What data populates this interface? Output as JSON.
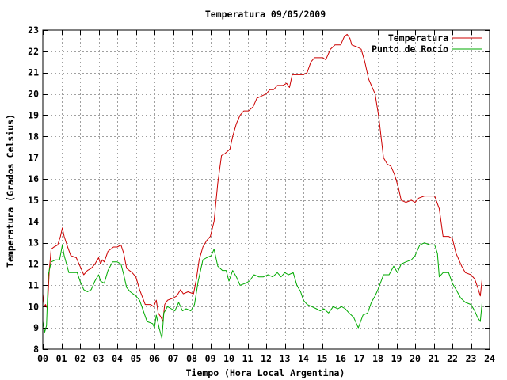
{
  "chart_data": {
    "type": "line",
    "title": "Temperatura 09/05/2009",
    "xlabel": "Tiempo (Hora Local Argentina)",
    "ylabel": "Temperatura (Grados Celsius)",
    "xlim": [
      0,
      24
    ],
    "ylim": [
      8,
      23
    ],
    "x_ticks": [
      {
        "value": 0,
        "label": "00"
      },
      {
        "value": 1,
        "label": "01"
      },
      {
        "value": 2,
        "label": "02"
      },
      {
        "value": 3,
        "label": "03"
      },
      {
        "value": 4,
        "label": "04"
      },
      {
        "value": 5,
        "label": "05"
      },
      {
        "value": 6,
        "label": "06"
      },
      {
        "value": 7,
        "label": "07"
      },
      {
        "value": 8,
        "label": "08"
      },
      {
        "value": 9,
        "label": "09"
      },
      {
        "value": 10,
        "label": "10"
      },
      {
        "value": 11,
        "label": "11"
      },
      {
        "value": 12,
        "label": "12"
      },
      {
        "value": 13,
        "label": "13"
      },
      {
        "value": 14,
        "label": "14"
      },
      {
        "value": 15,
        "label": "15"
      },
      {
        "value": 16,
        "label": "16"
      },
      {
        "value": 17,
        "label": "17"
      },
      {
        "value": 18,
        "label": "18"
      },
      {
        "value": 19,
        "label": "19"
      },
      {
        "value": 20,
        "label": "20"
      },
      {
        "value": 21,
        "label": "21"
      },
      {
        "value": 22,
        "label": "22"
      },
      {
        "value": 23,
        "label": "23"
      },
      {
        "value": 24,
        "label": "24"
      }
    ],
    "y_ticks": [
      {
        "value": 8,
        "label": "8"
      },
      {
        "value": 9,
        "label": "9"
      },
      {
        "value": 10,
        "label": "10"
      },
      {
        "value": 11,
        "label": "11"
      },
      {
        "value": 12,
        "label": "12"
      },
      {
        "value": 13,
        "label": "13"
      },
      {
        "value": 14,
        "label": "14"
      },
      {
        "value": 15,
        "label": "15"
      },
      {
        "value": 16,
        "label": "16"
      },
      {
        "value": 17,
        "label": "17"
      },
      {
        "value": 18,
        "label": "18"
      },
      {
        "value": 19,
        "label": "19"
      },
      {
        "value": 20,
        "label": "20"
      },
      {
        "value": 21,
        "label": "21"
      },
      {
        "value": 22,
        "label": "22"
      },
      {
        "value": 23,
        "label": "23"
      }
    ],
    "grid": true,
    "legend_position": "top-right",
    "series": [
      {
        "name": "Temperatura",
        "color": "#cc0000",
        "points": [
          [
            0.0,
            10.6
          ],
          [
            0.08,
            10.0
          ],
          [
            0.15,
            10.1
          ],
          [
            0.25,
            9.9
          ],
          [
            0.35,
            11.7
          ],
          [
            0.45,
            12.7
          ],
          [
            0.6,
            12.8
          ],
          [
            0.8,
            12.9
          ],
          [
            0.95,
            13.3
          ],
          [
            1.05,
            13.7
          ],
          [
            1.15,
            13.3
          ],
          [
            1.3,
            12.9
          ],
          [
            1.5,
            12.4
          ],
          [
            1.8,
            12.3
          ],
          [
            2.0,
            11.9
          ],
          [
            2.2,
            11.5
          ],
          [
            2.4,
            11.7
          ],
          [
            2.6,
            11.8
          ],
          [
            2.8,
            12.0
          ],
          [
            3.0,
            12.3
          ],
          [
            3.1,
            12.0
          ],
          [
            3.2,
            12.2
          ],
          [
            3.3,
            12.1
          ],
          [
            3.5,
            12.6
          ],
          [
            3.8,
            12.8
          ],
          [
            4.0,
            12.8
          ],
          [
            4.2,
            12.9
          ],
          [
            4.35,
            12.5
          ],
          [
            4.5,
            11.8
          ],
          [
            4.8,
            11.6
          ],
          [
            5.0,
            11.4
          ],
          [
            5.2,
            10.8
          ],
          [
            5.5,
            10.1
          ],
          [
            5.8,
            10.1
          ],
          [
            5.95,
            10.0
          ],
          [
            6.1,
            10.3
          ],
          [
            6.2,
            9.7
          ],
          [
            6.35,
            9.5
          ],
          [
            6.45,
            9.3
          ],
          [
            6.55,
            10.1
          ],
          [
            6.7,
            10.3
          ],
          [
            7.0,
            10.4
          ],
          [
            7.2,
            10.5
          ],
          [
            7.4,
            10.8
          ],
          [
            7.55,
            10.6
          ],
          [
            7.8,
            10.7
          ],
          [
            8.1,
            10.6
          ],
          [
            8.25,
            11.3
          ],
          [
            8.4,
            12.2
          ],
          [
            8.6,
            12.8
          ],
          [
            8.8,
            13.1
          ],
          [
            9.0,
            13.3
          ],
          [
            9.2,
            14.0
          ],
          [
            9.4,
            15.8
          ],
          [
            9.6,
            17.1
          ],
          [
            9.8,
            17.2
          ],
          [
            10.05,
            17.4
          ],
          [
            10.2,
            18.0
          ],
          [
            10.4,
            18.6
          ],
          [
            10.6,
            19.0
          ],
          [
            10.8,
            19.2
          ],
          [
            11.05,
            19.2
          ],
          [
            11.3,
            19.4
          ],
          [
            11.5,
            19.8
          ],
          [
            11.75,
            19.9
          ],
          [
            12.0,
            20.0
          ],
          [
            12.2,
            20.2
          ],
          [
            12.4,
            20.2
          ],
          [
            12.6,
            20.4
          ],
          [
            12.9,
            20.4
          ],
          [
            13.1,
            20.5
          ],
          [
            13.25,
            20.3
          ],
          [
            13.4,
            20.9
          ],
          [
            13.6,
            20.9
          ],
          [
            14.0,
            20.9
          ],
          [
            14.2,
            21.0
          ],
          [
            14.4,
            21.5
          ],
          [
            14.6,
            21.7
          ],
          [
            14.85,
            21.7
          ],
          [
            15.05,
            21.7
          ],
          [
            15.2,
            21.6
          ],
          [
            15.45,
            22.1
          ],
          [
            15.7,
            22.3
          ],
          [
            16.0,
            22.3
          ],
          [
            16.2,
            22.7
          ],
          [
            16.35,
            22.8
          ],
          [
            16.5,
            22.6
          ],
          [
            16.6,
            22.3
          ],
          [
            16.9,
            22.2
          ],
          [
            17.1,
            22.1
          ],
          [
            17.3,
            21.5
          ],
          [
            17.5,
            20.7
          ],
          [
            17.7,
            20.3
          ],
          [
            17.85,
            20.0
          ],
          [
            18.05,
            18.9
          ],
          [
            18.3,
            17.0
          ],
          [
            18.5,
            16.7
          ],
          [
            18.7,
            16.6
          ],
          [
            18.9,
            16.2
          ],
          [
            19.1,
            15.6
          ],
          [
            19.25,
            15.0
          ],
          [
            19.5,
            14.9
          ],
          [
            19.8,
            15.0
          ],
          [
            20.0,
            14.9
          ],
          [
            20.2,
            15.1
          ],
          [
            20.5,
            15.2
          ],
          [
            20.8,
            15.2
          ],
          [
            21.05,
            15.2
          ],
          [
            21.3,
            14.6
          ],
          [
            21.5,
            13.3
          ],
          [
            21.8,
            13.3
          ],
          [
            22.0,
            13.2
          ],
          [
            22.2,
            12.5
          ],
          [
            22.5,
            11.9
          ],
          [
            22.7,
            11.6
          ],
          [
            23.0,
            11.5
          ],
          [
            23.2,
            11.3
          ],
          [
            23.4,
            10.8
          ],
          [
            23.5,
            10.5
          ],
          [
            23.6,
            11.3
          ]
        ]
      },
      {
        "name": "Punto de Rocío",
        "color": "#00aa00",
        "points": [
          [
            0.0,
            9.3
          ],
          [
            0.1,
            8.8
          ],
          [
            0.2,
            9.1
          ],
          [
            0.3,
            11.5
          ],
          [
            0.45,
            12.1
          ],
          [
            0.7,
            12.2
          ],
          [
            0.9,
            12.2
          ],
          [
            1.05,
            12.9
          ],
          [
            1.15,
            12.4
          ],
          [
            1.4,
            11.6
          ],
          [
            1.6,
            11.6
          ],
          [
            1.85,
            11.6
          ],
          [
            2.0,
            11.2
          ],
          [
            2.2,
            10.8
          ],
          [
            2.4,
            10.7
          ],
          [
            2.6,
            10.8
          ],
          [
            2.8,
            11.2
          ],
          [
            3.0,
            11.5
          ],
          [
            3.1,
            11.2
          ],
          [
            3.3,
            11.1
          ],
          [
            3.5,
            11.7
          ],
          [
            3.75,
            12.1
          ],
          [
            4.0,
            12.1
          ],
          [
            4.2,
            12.0
          ],
          [
            4.35,
            11.5
          ],
          [
            4.5,
            10.9
          ],
          [
            4.7,
            10.7
          ],
          [
            5.0,
            10.5
          ],
          [
            5.2,
            10.3
          ],
          [
            5.4,
            9.8
          ],
          [
            5.6,
            9.3
          ],
          [
            5.9,
            9.2
          ],
          [
            6.0,
            9.0
          ],
          [
            6.1,
            9.6
          ],
          [
            6.25,
            9.0
          ],
          [
            6.4,
            8.5
          ],
          [
            6.5,
            9.7
          ],
          [
            6.7,
            10.0
          ],
          [
            6.9,
            9.9
          ],
          [
            7.1,
            9.8
          ],
          [
            7.3,
            10.2
          ],
          [
            7.5,
            9.8
          ],
          [
            7.7,
            9.9
          ],
          [
            7.95,
            9.8
          ],
          [
            8.15,
            10.1
          ],
          [
            8.35,
            11.2
          ],
          [
            8.6,
            12.2
          ],
          [
            8.8,
            12.3
          ],
          [
            9.05,
            12.4
          ],
          [
            9.2,
            12.7
          ],
          [
            9.4,
            11.9
          ],
          [
            9.65,
            11.7
          ],
          [
            9.85,
            11.7
          ],
          [
            10.0,
            11.2
          ],
          [
            10.2,
            11.7
          ],
          [
            10.4,
            11.4
          ],
          [
            10.6,
            11.0
          ],
          [
            10.9,
            11.1
          ],
          [
            11.1,
            11.2
          ],
          [
            11.35,
            11.5
          ],
          [
            11.6,
            11.4
          ],
          [
            11.85,
            11.4
          ],
          [
            12.1,
            11.5
          ],
          [
            12.35,
            11.4
          ],
          [
            12.6,
            11.6
          ],
          [
            12.8,
            11.4
          ],
          [
            13.0,
            11.6
          ],
          [
            13.2,
            11.5
          ],
          [
            13.45,
            11.6
          ],
          [
            13.65,
            11.0
          ],
          [
            13.85,
            10.7
          ],
          [
            14.0,
            10.3
          ],
          [
            14.2,
            10.1
          ],
          [
            14.45,
            10.0
          ],
          [
            14.7,
            9.9
          ],
          [
            14.9,
            9.8
          ],
          [
            15.1,
            9.9
          ],
          [
            15.35,
            9.7
          ],
          [
            15.6,
            10.0
          ],
          [
            15.85,
            9.9
          ],
          [
            16.05,
            10.0
          ],
          [
            16.25,
            9.9
          ],
          [
            16.45,
            9.7
          ],
          [
            16.7,
            9.5
          ],
          [
            16.95,
            9.0
          ],
          [
            17.2,
            9.6
          ],
          [
            17.45,
            9.7
          ],
          [
            17.65,
            10.2
          ],
          [
            17.85,
            10.5
          ],
          [
            18.05,
            10.9
          ],
          [
            18.3,
            11.5
          ],
          [
            18.6,
            11.5
          ],
          [
            18.85,
            11.9
          ],
          [
            19.05,
            11.6
          ],
          [
            19.25,
            12.0
          ],
          [
            19.5,
            12.1
          ],
          [
            19.8,
            12.2
          ],
          [
            20.0,
            12.4
          ],
          [
            20.25,
            12.9
          ],
          [
            20.5,
            13.0
          ],
          [
            20.8,
            12.9
          ],
          [
            21.05,
            12.9
          ],
          [
            21.2,
            12.5
          ],
          [
            21.3,
            11.4
          ],
          [
            21.5,
            11.6
          ],
          [
            21.8,
            11.6
          ],
          [
            22.0,
            11.1
          ],
          [
            22.2,
            10.8
          ],
          [
            22.45,
            10.4
          ],
          [
            22.7,
            10.2
          ],
          [
            23.0,
            10.1
          ],
          [
            23.2,
            9.8
          ],
          [
            23.35,
            9.5
          ],
          [
            23.5,
            9.3
          ],
          [
            23.6,
            10.2
          ]
        ]
      }
    ]
  }
}
